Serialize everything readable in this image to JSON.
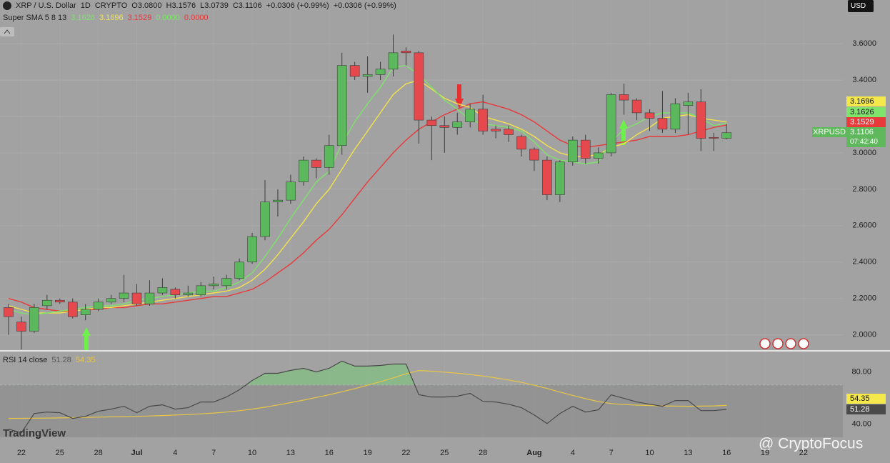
{
  "header": {
    "symbol": "XRP / U.S. Dollar",
    "interval": "1D",
    "exchange": "CRYPTO",
    "open": "O3.0800",
    "high": "H3.1576",
    "low": "L3.0739",
    "close": "C3.1106",
    "change": "+0.0306 (+0.99%)",
    "change2": "+0.0306 (+0.99%)",
    "currency": "USD"
  },
  "indicator": {
    "name": "Super SMA 5 8 13",
    "values": [
      "3.1626",
      "3.1696",
      "3.1529",
      "0.0000",
      "0.0000"
    ],
    "colors": [
      "#7ee36a",
      "#f3e24c",
      "#e8393b",
      "#7ee36a",
      "#e8393b"
    ]
  },
  "tags": [
    {
      "label": "3.1696",
      "color": "#f5e84a"
    },
    {
      "label": "3.1626",
      "color": "#7fe46c"
    },
    {
      "label": "3.1529",
      "color": "#e8393b"
    }
  ],
  "last_price": {
    "symbol": "XRPUSD",
    "price": "3.1106",
    "countdown": "07:42:40"
  },
  "rsi_legend": {
    "name": "RSI 14 close",
    "rsi": "51.28",
    "ma": "54.35"
  },
  "branding": "TradingView",
  "watermark": "@ CryptoFocus",
  "chart_data": [
    {
      "type": "candlestick",
      "categories": [
        null,
        "22",
        null,
        null,
        "25",
        null,
        null,
        "28",
        null,
        null,
        "Jul",
        null,
        null,
        "4",
        null,
        null,
        "7",
        null,
        null,
        "10",
        null,
        null,
        "13",
        null,
        null,
        "16",
        null,
        null,
        "19",
        null,
        null,
        "22",
        null,
        null,
        "25",
        null,
        null,
        "28",
        null,
        null,
        null,
        "Aug",
        null,
        null,
        "4",
        null,
        null,
        "7",
        null,
        null,
        "10",
        null,
        null,
        "13",
        null,
        null,
        "16",
        null,
        null,
        "19",
        null,
        null,
        "22"
      ],
      "open": [
        2.15,
        2.07,
        2.02,
        2.16,
        2.19,
        2.18,
        2.11,
        2.14,
        2.18,
        2.2,
        2.23,
        2.17,
        2.23,
        2.25,
        2.22,
        2.22,
        2.27,
        2.27,
        2.31,
        2.4,
        2.54,
        2.73,
        2.74,
        2.84,
        2.96,
        2.92,
        3.04,
        3.48,
        3.42,
        3.43,
        3.46,
        3.56,
        3.55,
        3.18,
        3.15,
        3.14,
        3.17,
        3.24,
        3.13,
        3.13,
        3.09,
        3.02,
        2.96,
        2.77,
        2.95,
        3.07,
        2.97,
        3.0,
        3.32,
        3.29,
        3.22,
        3.19,
        3.13,
        3.26,
        3.28,
        3.085,
        3.08,
        null,
        null,
        null,
        null,
        null,
        null
      ],
      "high": [
        2.17,
        2.1,
        2.17,
        2.22,
        2.2,
        2.2,
        2.17,
        2.2,
        2.22,
        2.33,
        2.28,
        2.3,
        2.31,
        2.26,
        2.27,
        2.29,
        2.32,
        2.33,
        2.42,
        2.56,
        2.85,
        2.8,
        2.88,
        2.98,
        2.97,
        3.1,
        3.55,
        3.5,
        3.53,
        3.5,
        3.65,
        3.58,
        3.56,
        3.2,
        3.2,
        3.22,
        3.27,
        3.32,
        3.15,
        3.15,
        3.1,
        3.03,
        2.98,
        2.96,
        3.09,
        3.1,
        3.03,
        3.33,
        3.38,
        3.3,
        3.24,
        3.34,
        3.3,
        3.33,
        3.35,
        3.11,
        3.1576,
        null,
        null,
        null,
        null,
        null,
        null
      ],
      "low": [
        2.0,
        1.92,
        2.01,
        2.14,
        2.17,
        2.09,
        2.08,
        2.13,
        2.17,
        2.18,
        2.16,
        2.16,
        2.22,
        2.2,
        2.21,
        2.21,
        2.25,
        2.25,
        2.3,
        2.39,
        2.52,
        2.65,
        2.72,
        2.82,
        2.86,
        2.88,
        2.99,
        3.4,
        3.33,
        3.4,
        3.42,
        3.48,
        3.05,
        2.96,
        3.0,
        3.1,
        3.14,
        3.1,
        3.08,
        3.06,
        2.98,
        2.9,
        2.74,
        2.73,
        2.93,
        2.94,
        2.94,
        2.98,
        3.21,
        3.18,
        3.12,
        3.11,
        3.11,
        3.1,
        3.01,
        3.01,
        3.0739,
        null,
        null,
        null,
        null,
        null,
        null
      ],
      "close": [
        2.1,
        2.02,
        2.15,
        2.19,
        2.18,
        2.1,
        2.14,
        2.18,
        2.2,
        2.23,
        2.17,
        2.23,
        2.26,
        2.22,
        2.23,
        2.27,
        2.28,
        2.31,
        2.4,
        2.54,
        2.73,
        2.74,
        2.84,
        2.96,
        2.92,
        3.04,
        3.48,
        3.42,
        3.43,
        3.46,
        3.55,
        3.55,
        3.18,
        3.15,
        3.14,
        3.17,
        3.24,
        3.12,
        3.12,
        3.1,
        3.02,
        2.96,
        2.77,
        2.95,
        3.07,
        2.97,
        3.0,
        3.32,
        3.29,
        3.22,
        3.19,
        3.13,
        3.27,
        3.28,
        3.08,
        3.08,
        3.1106,
        null,
        null,
        null,
        null,
        null,
        null
      ],
      "up_color": "#5cb85c",
      "down_color": "#e5484d",
      "series": [
        {
          "color": "#e8393b",
          "values": [
            2.2,
            2.18,
            2.15,
            2.14,
            2.13,
            2.13,
            2.14,
            2.14,
            2.15,
            2.15,
            2.16,
            2.17,
            2.17,
            2.18,
            2.19,
            2.2,
            2.21,
            2.21,
            2.23,
            2.25,
            2.29,
            2.34,
            2.39,
            2.45,
            2.52,
            2.58,
            2.66,
            2.75,
            2.84,
            2.92,
            3.0,
            3.07,
            3.13,
            3.17,
            3.21,
            3.24,
            3.27,
            3.28,
            3.26,
            3.24,
            3.21,
            3.17,
            3.12,
            3.07,
            3.04,
            3.03,
            3.04,
            3.05,
            3.06,
            3.07,
            3.09,
            3.09,
            3.09,
            3.1,
            3.12,
            3.14,
            3.1529,
            null,
            null,
            null,
            null,
            null,
            null
          ]
        },
        {
          "color": "#f3e24c",
          "values": [
            2.16,
            2.14,
            2.12,
            2.12,
            2.12,
            2.13,
            2.14,
            2.15,
            2.15,
            2.16,
            2.17,
            2.18,
            2.19,
            2.2,
            2.21,
            2.22,
            2.23,
            2.24,
            2.26,
            2.3,
            2.36,
            2.44,
            2.53,
            2.62,
            2.72,
            2.8,
            2.91,
            3.02,
            3.12,
            3.22,
            3.32,
            3.38,
            3.4,
            3.35,
            3.3,
            3.27,
            3.25,
            3.2,
            3.18,
            3.16,
            3.13,
            3.09,
            3.04,
            3.0,
            2.98,
            2.98,
            2.99,
            3.03,
            3.05,
            3.1,
            3.14,
            3.19,
            3.2,
            3.21,
            3.19,
            3.18,
            3.1696,
            null,
            null,
            null,
            null,
            null,
            null
          ]
        },
        {
          "color": "#7ee36a",
          "values": [
            2.14,
            2.12,
            2.11,
            2.12,
            2.13,
            2.14,
            2.15,
            2.16,
            2.16,
            2.17,
            2.19,
            2.2,
            2.21,
            2.22,
            2.23,
            2.24,
            2.24,
            2.26,
            2.29,
            2.34,
            2.43,
            2.53,
            2.64,
            2.74,
            2.84,
            2.9,
            3.05,
            3.17,
            3.27,
            3.36,
            3.47,
            3.48,
            3.43,
            3.36,
            3.29,
            3.24,
            3.18,
            3.16,
            3.15,
            3.14,
            3.12,
            3.06,
            2.99,
            2.96,
            2.95,
            2.94,
            2.95,
            3.06,
            3.13,
            3.16,
            3.2,
            3.22,
            3.22,
            3.22,
            3.19,
            3.15,
            3.1626,
            null,
            null,
            null,
            null,
            null,
            null
          ]
        }
      ],
      "ylim": [
        1.92,
        3.84
      ],
      "yticks": [
        {
          "value": 2.0,
          "label": "2.0000"
        },
        {
          "value": 2.2,
          "label": "2.2000"
        },
        {
          "value": 2.4,
          "label": "2.4000"
        },
        {
          "value": 2.6,
          "label": "2.6000"
        },
        {
          "value": 2.8,
          "label": "2.8000"
        },
        {
          "value": 3.0,
          "label": "3.0000"
        },
        {
          "value": 3.2,
          "label": "3.2000"
        },
        {
          "value": 3.4,
          "label": "3.4000"
        },
        {
          "value": 3.6,
          "label": "3.6000"
        }
      ],
      "grid": true
    },
    {
      "type": "line",
      "series": [
        {
          "color": "#4a4a4a",
          "values": [
            36.2,
            33.4,
            48.2,
            49.3,
            48.8,
            44.4,
            46.0,
            49.9,
            51.5,
            53.7,
            48.8,
            53.7,
            54.8,
            51.5,
            52.6,
            57.0,
            57.0,
            60.8,
            66.3,
            73.4,
            78.9,
            78.9,
            81.1,
            82.7,
            80.0,
            82.7,
            88.2,
            84.4,
            84.4,
            84.9,
            86.0,
            86.0,
            62.5,
            60.8,
            60.8,
            61.4,
            63.6,
            57.5,
            57.0,
            55.3,
            52.6,
            47.1,
            40.5,
            48.2,
            53.7,
            49.3,
            51.0,
            62.5,
            59.7,
            57.0,
            55.3,
            53.7,
            58.1,
            58.1,
            50.4,
            50.4,
            51.28,
            null,
            null,
            null,
            null,
            null,
            null
          ]
        },
        {
          "color": "#e8c547",
          "values": [
            44.4,
            44.5,
            44.6,
            44.7,
            44.8,
            45.0,
            45.2,
            45.4,
            45.6,
            45.8,
            46.0,
            46.3,
            46.6,
            47.0,
            47.4,
            47.9,
            48.5,
            49.3,
            50.3,
            51.5,
            53.0,
            54.7,
            56.5,
            58.4,
            60.4,
            62.5,
            64.8,
            67.2,
            69.8,
            72.5,
            75.4,
            78.5,
            81.0,
            80.5,
            79.8,
            79.0,
            78.0,
            76.8,
            75.4,
            73.8,
            72.0,
            69.8,
            67.3,
            64.6,
            62.0,
            59.5,
            57.3,
            55.8,
            55.0,
            54.6,
            54.3,
            54.0,
            53.8,
            53.7,
            53.8,
            54.0,
            54.35,
            null,
            null,
            null,
            null,
            null,
            null
          ]
        }
      ],
      "band": [
        30,
        70
      ],
      "ylim": [
        30,
        95
      ],
      "yticks": [
        {
          "value": 40,
          "label": "40.00"
        },
        {
          "value": 80,
          "label": "80.00"
        }
      ]
    }
  ]
}
